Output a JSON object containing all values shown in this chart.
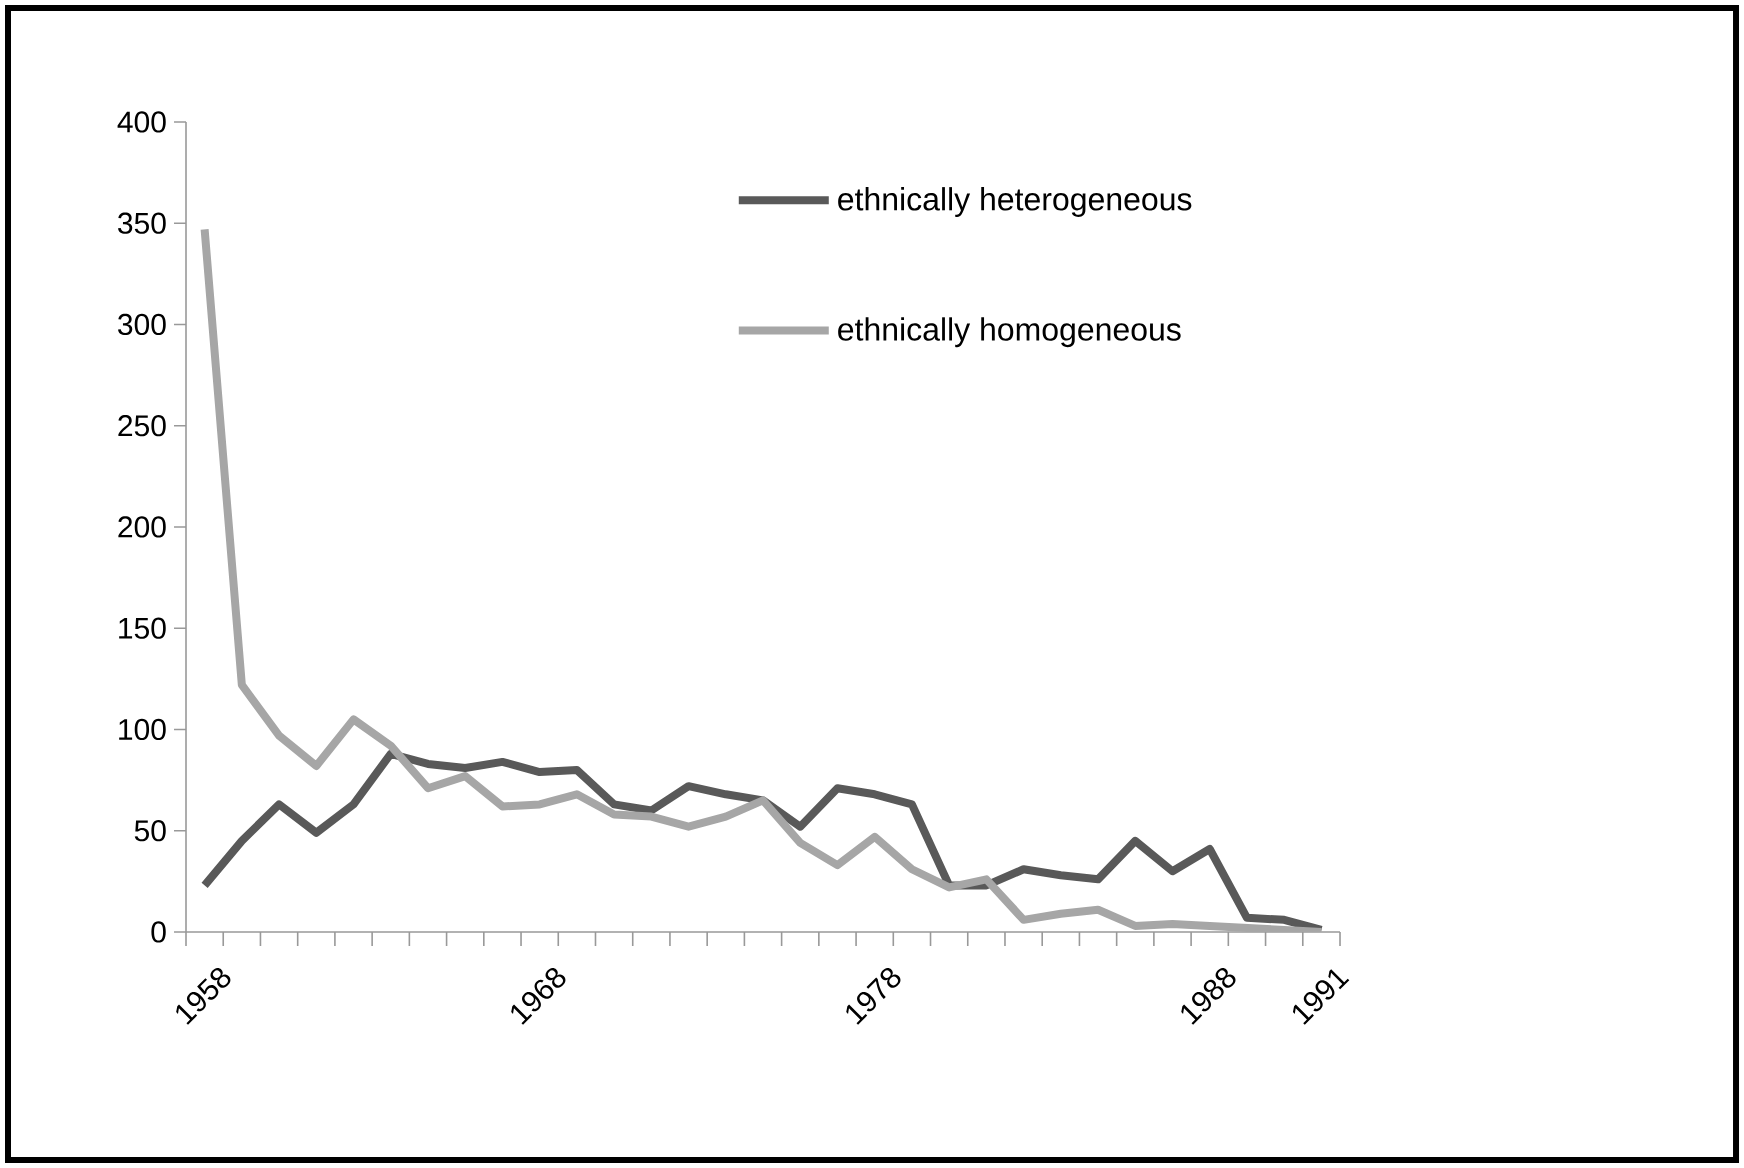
{
  "chart_data": {
    "type": "line",
    "categories": [
      "1958",
      null,
      null,
      null,
      null,
      null,
      null,
      null,
      null,
      "1968",
      null,
      null,
      null,
      null,
      null,
      null,
      null,
      null,
      "1978",
      null,
      null,
      null,
      null,
      null,
      null,
      null,
      null,
      "1988",
      null,
      null,
      "1991"
    ],
    "series": [
      {
        "name": "ethnically heterogeneous",
        "color": "#595959",
        "values": [
          23,
          45,
          63,
          49,
          63,
          88,
          83,
          81,
          84,
          79,
          80,
          63,
          60,
          72,
          68,
          65,
          52,
          71,
          68,
          63,
          23,
          23,
          31,
          28,
          26,
          45,
          30,
          41,
          7,
          6,
          1
        ]
      },
      {
        "name": "ethnically homogeneous",
        "color": "#a6a6a6",
        "values": [
          347,
          122,
          97,
          82,
          105,
          92,
          71,
          77,
          62,
          63,
          68,
          58,
          57,
          52,
          57,
          65,
          44,
          33,
          47,
          31,
          22,
          26,
          6,
          9,
          11,
          3,
          4,
          3,
          2,
          1,
          0
        ]
      }
    ],
    "ylim": [
      0,
      400
    ],
    "yticks": [
      0,
      50,
      100,
      150,
      200,
      250,
      300,
      350,
      400
    ],
    "legend": "top right",
    "grid": false,
    "marker": "none",
    "line_style": "solid"
  }
}
